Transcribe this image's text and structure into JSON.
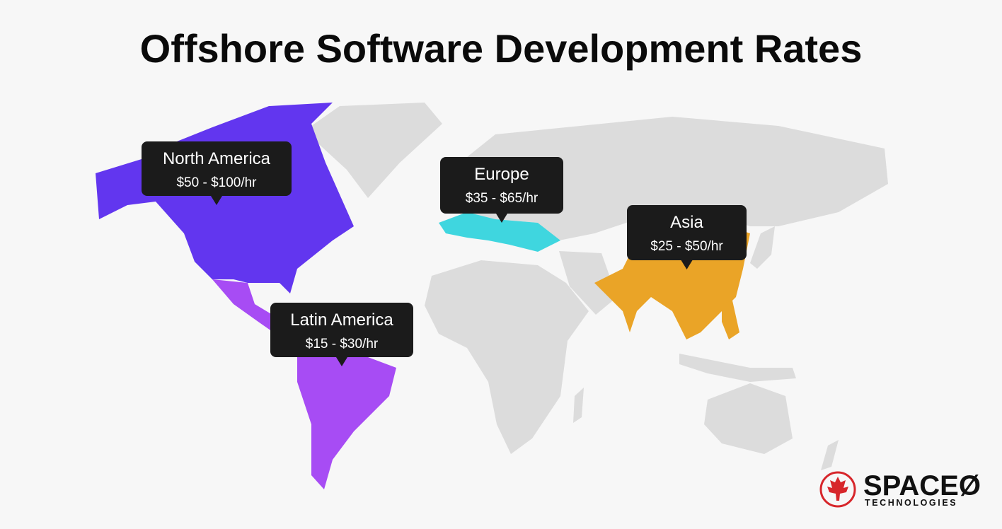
{
  "title": "Offshore Software Development Rates",
  "regions": [
    {
      "name": "North America",
      "rate": "$50 - $100/hr",
      "color": "#6236ef"
    },
    {
      "name": "Europe",
      "rate": "$35 - $65/hr",
      "color": "#3fd6df"
    },
    {
      "name": "Asia",
      "rate": "$25 - $50/hr",
      "color": "#eaa427"
    },
    {
      "name": "Latin America",
      "rate": "$15 - $30/hr",
      "color": "#a74cf4"
    }
  ],
  "logo": {
    "name": "SPACEØ",
    "tagline": "TECHNOLOGIES"
  }
}
